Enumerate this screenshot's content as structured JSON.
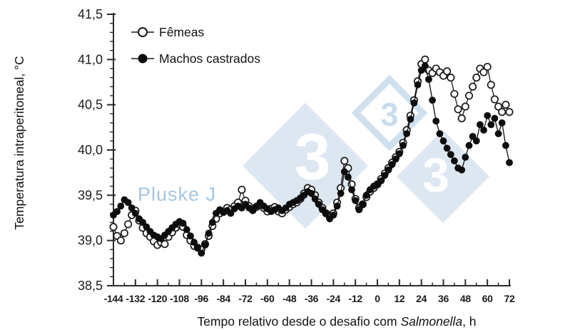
{
  "chart_data": {
    "type": "scatter",
    "title": "",
    "x_axis": {
      "label_prefix": "Tempo relativo desde o desafio com ",
      "label_italic": "Salmonella",
      "label_suffix": ", h",
      "min": -144,
      "max": 72,
      "major_ticks": [
        -144,
        -132,
        -120,
        -108,
        -96,
        -84,
        -72,
        -60,
        -48,
        -36,
        -24,
        -12,
        0,
        12,
        24,
        36,
        48,
        60,
        72
      ],
      "minor_step": 6
    },
    "y_axis": {
      "label": "Temperatura intraperitoneal, °C",
      "min": 38.5,
      "max": 41.5,
      "major_ticks": [
        {
          "v": 41.5,
          "t": "41,5"
        },
        {
          "v": 41.0,
          "t": "41,0"
        },
        {
          "v": 40.5,
          "t": "40,5"
        },
        {
          "v": 40.0,
          "t": "40,0"
        },
        {
          "v": 39.5,
          "t": "39,5"
        },
        {
          "v": 39.0,
          "t": "39,0"
        },
        {
          "v": 38.5,
          "t": "38,5"
        }
      ],
      "minor_step": 0.1
    },
    "legend": [
      {
        "label": "Fêmeas",
        "marker": "open"
      },
      {
        "label": "Machos castrados",
        "marker": "filled"
      }
    ],
    "series": [
      {
        "name": "Fêmeas",
        "marker": "open",
        "color": "#1a1a1a",
        "points": [
          [
            -144,
            39.15
          ],
          [
            -142,
            39.05
          ],
          [
            -140,
            39.0
          ],
          [
            -138,
            39.08
          ],
          [
            -136,
            39.18
          ],
          [
            -134,
            39.28
          ],
          [
            -132,
            39.33
          ],
          [
            -130,
            39.22
          ],
          [
            -128,
            39.14
          ],
          [
            -126,
            39.08
          ],
          [
            -124,
            39.04
          ],
          [
            -122,
            38.99
          ],
          [
            -120,
            38.95
          ],
          [
            -118,
            38.98
          ],
          [
            -116,
            38.96
          ],
          [
            -114,
            39.04
          ],
          [
            -112,
            39.09
          ],
          [
            -110,
            39.14
          ],
          [
            -108,
            39.18
          ],
          [
            -106,
            39.15
          ],
          [
            -104,
            39.06
          ],
          [
            -102,
            39.0
          ],
          [
            -100,
            38.94
          ],
          [
            -98,
            38.92
          ],
          [
            -96,
            38.9
          ],
          [
            -94,
            38.96
          ],
          [
            -92,
            39.05
          ],
          [
            -90,
            39.16
          ],
          [
            -88,
            39.24
          ],
          [
            -86,
            39.3
          ],
          [
            -84,
            39.32
          ],
          [
            -82,
            39.36
          ],
          [
            -80,
            39.34
          ],
          [
            -78,
            39.38
          ],
          [
            -76,
            39.42
          ],
          [
            -74,
            39.56
          ],
          [
            -72,
            39.44
          ],
          [
            -70,
            39.38
          ],
          [
            -68,
            39.34
          ],
          [
            -66,
            39.37
          ],
          [
            -64,
            39.4
          ],
          [
            -62,
            39.36
          ],
          [
            -60,
            39.32
          ],
          [
            -58,
            39.35
          ],
          [
            -56,
            39.37
          ],
          [
            -54,
            39.32
          ],
          [
            -52,
            39.3
          ],
          [
            -50,
            39.34
          ],
          [
            -48,
            39.37
          ],
          [
            -46,
            39.4
          ],
          [
            -44,
            39.42
          ],
          [
            -42,
            39.46
          ],
          [
            -40,
            39.52
          ],
          [
            -38,
            39.58
          ],
          [
            -36,
            39.56
          ],
          [
            -34,
            39.5
          ],
          [
            -32,
            39.42
          ],
          [
            -30,
            39.36
          ],
          [
            -28,
            39.3
          ],
          [
            -26,
            39.26
          ],
          [
            -24,
            39.3
          ],
          [
            -22,
            39.42
          ],
          [
            -20,
            39.58
          ],
          [
            -18,
            39.88
          ],
          [
            -16,
            39.8
          ],
          [
            -14,
            39.62
          ],
          [
            -12,
            39.46
          ],
          [
            -10,
            39.36
          ],
          [
            -8,
            39.4
          ],
          [
            -6,
            39.48
          ],
          [
            -4,
            39.54
          ],
          [
            -2,
            39.58
          ],
          [
            0,
            39.62
          ],
          [
            2,
            39.68
          ],
          [
            4,
            39.74
          ],
          [
            6,
            39.8
          ],
          [
            8,
            39.86
          ],
          [
            10,
            39.92
          ],
          [
            12,
            39.98
          ],
          [
            14,
            40.08
          ],
          [
            16,
            40.22
          ],
          [
            18,
            40.38
          ],
          [
            20,
            40.55
          ],
          [
            22,
            40.76
          ],
          [
            24,
            40.95
          ],
          [
            26,
            41.0
          ],
          [
            28,
            40.88
          ],
          [
            30,
            40.85
          ],
          [
            32,
            40.9
          ],
          [
            34,
            40.86
          ],
          [
            36,
            40.82
          ],
          [
            38,
            40.87
          ],
          [
            40,
            40.8
          ],
          [
            42,
            40.62
          ],
          [
            44,
            40.45
          ],
          [
            46,
            40.35
          ],
          [
            48,
            40.48
          ],
          [
            50,
            40.6
          ],
          [
            52,
            40.7
          ],
          [
            54,
            40.8
          ],
          [
            56,
            40.9
          ],
          [
            58,
            40.86
          ],
          [
            60,
            40.92
          ],
          [
            62,
            40.72
          ],
          [
            64,
            40.56
          ],
          [
            66,
            40.48
          ],
          [
            68,
            40.42
          ],
          [
            70,
            40.5
          ],
          [
            72,
            40.42
          ]
        ]
      },
      {
        "name": "Machos castrados",
        "marker": "filled",
        "color": "#0d0d0d",
        "points": [
          [
            -144,
            39.28
          ],
          [
            -142,
            39.32
          ],
          [
            -140,
            39.38
          ],
          [
            -138,
            39.45
          ],
          [
            -136,
            39.42
          ],
          [
            -134,
            39.36
          ],
          [
            -132,
            39.3
          ],
          [
            -130,
            39.24
          ],
          [
            -128,
            39.2
          ],
          [
            -126,
            39.15
          ],
          [
            -124,
            39.1
          ],
          [
            -122,
            39.06
          ],
          [
            -120,
            39.04
          ],
          [
            -118,
            39.02
          ],
          [
            -116,
            39.06
          ],
          [
            -114,
            39.1
          ],
          [
            -112,
            39.14
          ],
          [
            -110,
            39.18
          ],
          [
            -108,
            39.21
          ],
          [
            -106,
            39.19
          ],
          [
            -104,
            39.12
          ],
          [
            -102,
            39.05
          ],
          [
            -100,
            38.98
          ],
          [
            -98,
            38.92
          ],
          [
            -96,
            38.86
          ],
          [
            -94,
            38.95
          ],
          [
            -92,
            39.08
          ],
          [
            -90,
            39.2
          ],
          [
            -88,
            39.3
          ],
          [
            -86,
            39.34
          ],
          [
            -84,
            39.31
          ],
          [
            -82,
            39.33
          ],
          [
            -80,
            39.3
          ],
          [
            -78,
            39.35
          ],
          [
            -76,
            39.38
          ],
          [
            -74,
            39.36
          ],
          [
            -72,
            39.4
          ],
          [
            -70,
            39.36
          ],
          [
            -68,
            39.33
          ],
          [
            -66,
            39.38
          ],
          [
            -64,
            39.42
          ],
          [
            -62,
            39.38
          ],
          [
            -60,
            39.35
          ],
          [
            -58,
            39.32
          ],
          [
            -56,
            39.34
          ],
          [
            -54,
            39.36
          ],
          [
            -52,
            39.33
          ],
          [
            -50,
            39.36
          ],
          [
            -48,
            39.4
          ],
          [
            -46,
            39.42
          ],
          [
            -44,
            39.44
          ],
          [
            -42,
            39.47
          ],
          [
            -40,
            39.5
          ],
          [
            -38,
            39.54
          ],
          [
            -36,
            39.52
          ],
          [
            -34,
            39.46
          ],
          [
            -32,
            39.4
          ],
          [
            -30,
            39.34
          ],
          [
            -28,
            39.3
          ],
          [
            -26,
            39.24
          ],
          [
            -24,
            39.28
          ],
          [
            -22,
            39.38
          ],
          [
            -20,
            39.52
          ],
          [
            -18,
            39.76
          ],
          [
            -16,
            39.7
          ],
          [
            -14,
            39.56
          ],
          [
            -12,
            39.44
          ],
          [
            -10,
            39.34
          ],
          [
            -8,
            39.4
          ],
          [
            -6,
            39.5
          ],
          [
            -4,
            39.56
          ],
          [
            -2,
            39.6
          ],
          [
            0,
            39.62
          ],
          [
            2,
            39.66
          ],
          [
            4,
            39.72
          ],
          [
            6,
            39.78
          ],
          [
            8,
            39.84
          ],
          [
            10,
            39.9
          ],
          [
            12,
            39.96
          ],
          [
            14,
            40.05
          ],
          [
            16,
            40.18
          ],
          [
            18,
            40.34
          ],
          [
            20,
            40.52
          ],
          [
            22,
            40.72
          ],
          [
            24,
            40.88
          ],
          [
            26,
            40.93
          ],
          [
            28,
            40.78
          ],
          [
            30,
            40.55
          ],
          [
            32,
            40.32
          ],
          [
            34,
            40.18
          ],
          [
            36,
            40.1
          ],
          [
            38,
            40.02
          ],
          [
            40,
            39.95
          ],
          [
            42,
            39.88
          ],
          [
            44,
            39.8
          ],
          [
            46,
            39.78
          ],
          [
            48,
            39.92
          ],
          [
            50,
            40.05
          ],
          [
            52,
            40.15
          ],
          [
            54,
            40.1
          ],
          [
            56,
            40.28
          ],
          [
            58,
            40.22
          ],
          [
            60,
            40.38
          ],
          [
            62,
            40.28
          ],
          [
            64,
            40.35
          ],
          [
            66,
            40.18
          ],
          [
            68,
            40.3
          ],
          [
            70,
            40.05
          ],
          [
            72,
            39.86
          ]
        ]
      }
    ]
  },
  "watermarks": {
    "pluske_text": "Pluske J",
    "pluske_color": "#a6c6e0",
    "three": "3",
    "diamond_fill": "#dce7f1",
    "diamond_outline": "#cfe0ee",
    "three_on_white": "#c8dcec",
    "three_on_fill": "#ffffff"
  }
}
